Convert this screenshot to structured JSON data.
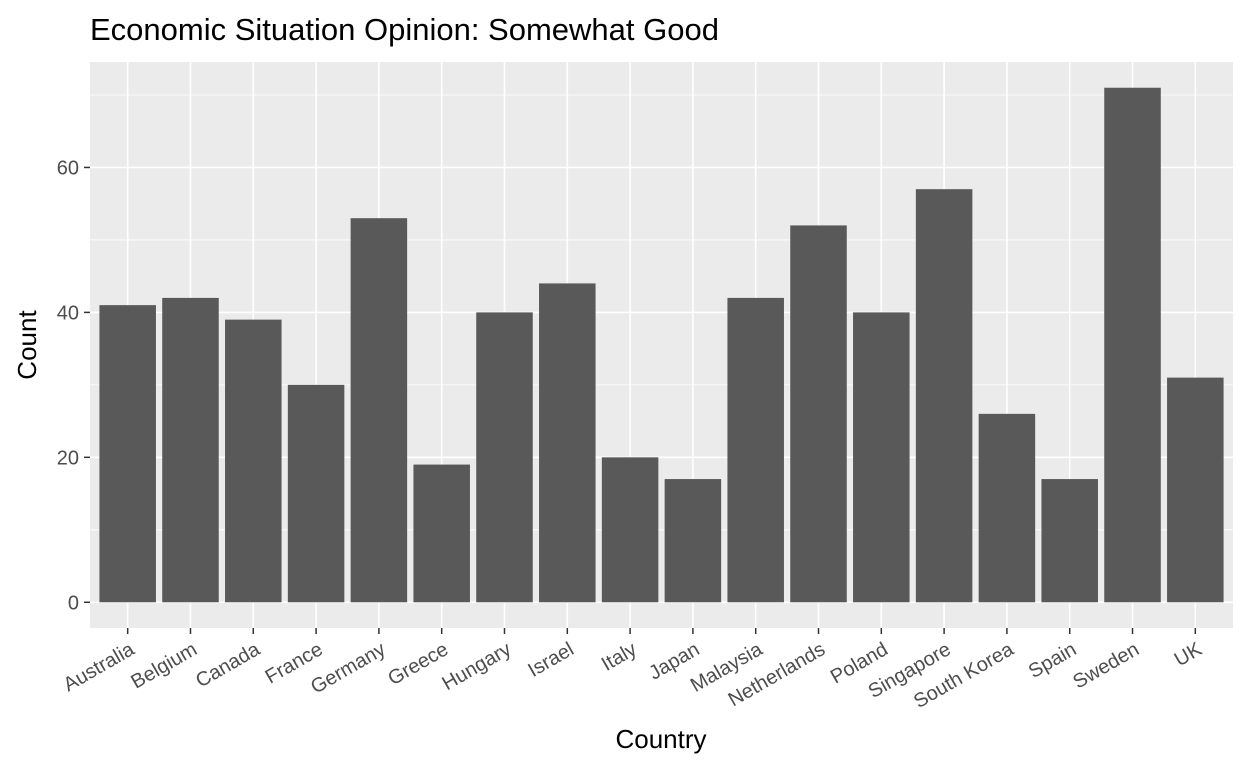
{
  "chart_data": {
    "type": "bar",
    "title": "Economic Situation Opinion: Somewhat Good",
    "xlabel": "Country",
    "ylabel": "Count",
    "categories": [
      "Australia",
      "Belgium",
      "Canada",
      "France",
      "Germany",
      "Greece",
      "Hungary",
      "Israel",
      "Italy",
      "Japan",
      "Malaysia",
      "Netherlands",
      "Poland",
      "Singapore",
      "South Korea",
      "Spain",
      "Sweden",
      "UK"
    ],
    "values": [
      41,
      42,
      39,
      30,
      53,
      19,
      40,
      44,
      20,
      17,
      42,
      52,
      40,
      57,
      26,
      17,
      71,
      31
    ],
    "ylim": [
      -3.55,
      74.55
    ],
    "yticks": [
      0,
      20,
      40,
      60
    ],
    "grid": true,
    "colors": {
      "bar": "#595959",
      "panel": "#ebebeb",
      "grid": "#ffffff",
      "tick_text": "#4d4d4d"
    }
  }
}
